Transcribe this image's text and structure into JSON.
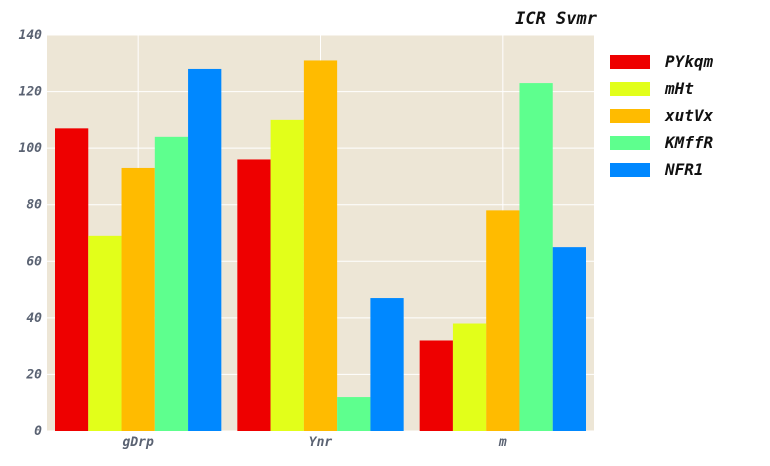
{
  "chart_data": {
    "type": "bar",
    "title": "ICR Svmr",
    "categories": [
      "gDrp",
      "Ynr",
      "m"
    ],
    "series": [
      {
        "name": "PYkqm",
        "color": "#ee0000",
        "values": [
          107,
          96,
          32
        ]
      },
      {
        "name": "mHt",
        "color": "#e2ff1a",
        "values": [
          69,
          110,
          38
        ]
      },
      {
        "name": "xutVx",
        "color": "#ffbb00",
        "values": [
          93,
          131,
          78
        ]
      },
      {
        "name": "KMffR",
        "color": "#5eff8e",
        "values": [
          104,
          12,
          123
        ]
      },
      {
        "name": "NFR1",
        "color": "#0088ff",
        "values": [
          128,
          47,
          65
        ]
      }
    ],
    "ylim": [
      0,
      140
    ],
    "yticks": [
      "0",
      "20",
      "40",
      "60",
      "80",
      "100",
      "120",
      "140"
    ],
    "xlabel": "",
    "ylabel": "",
    "grid": true,
    "legend": "right",
    "background": "#ede6d6"
  }
}
